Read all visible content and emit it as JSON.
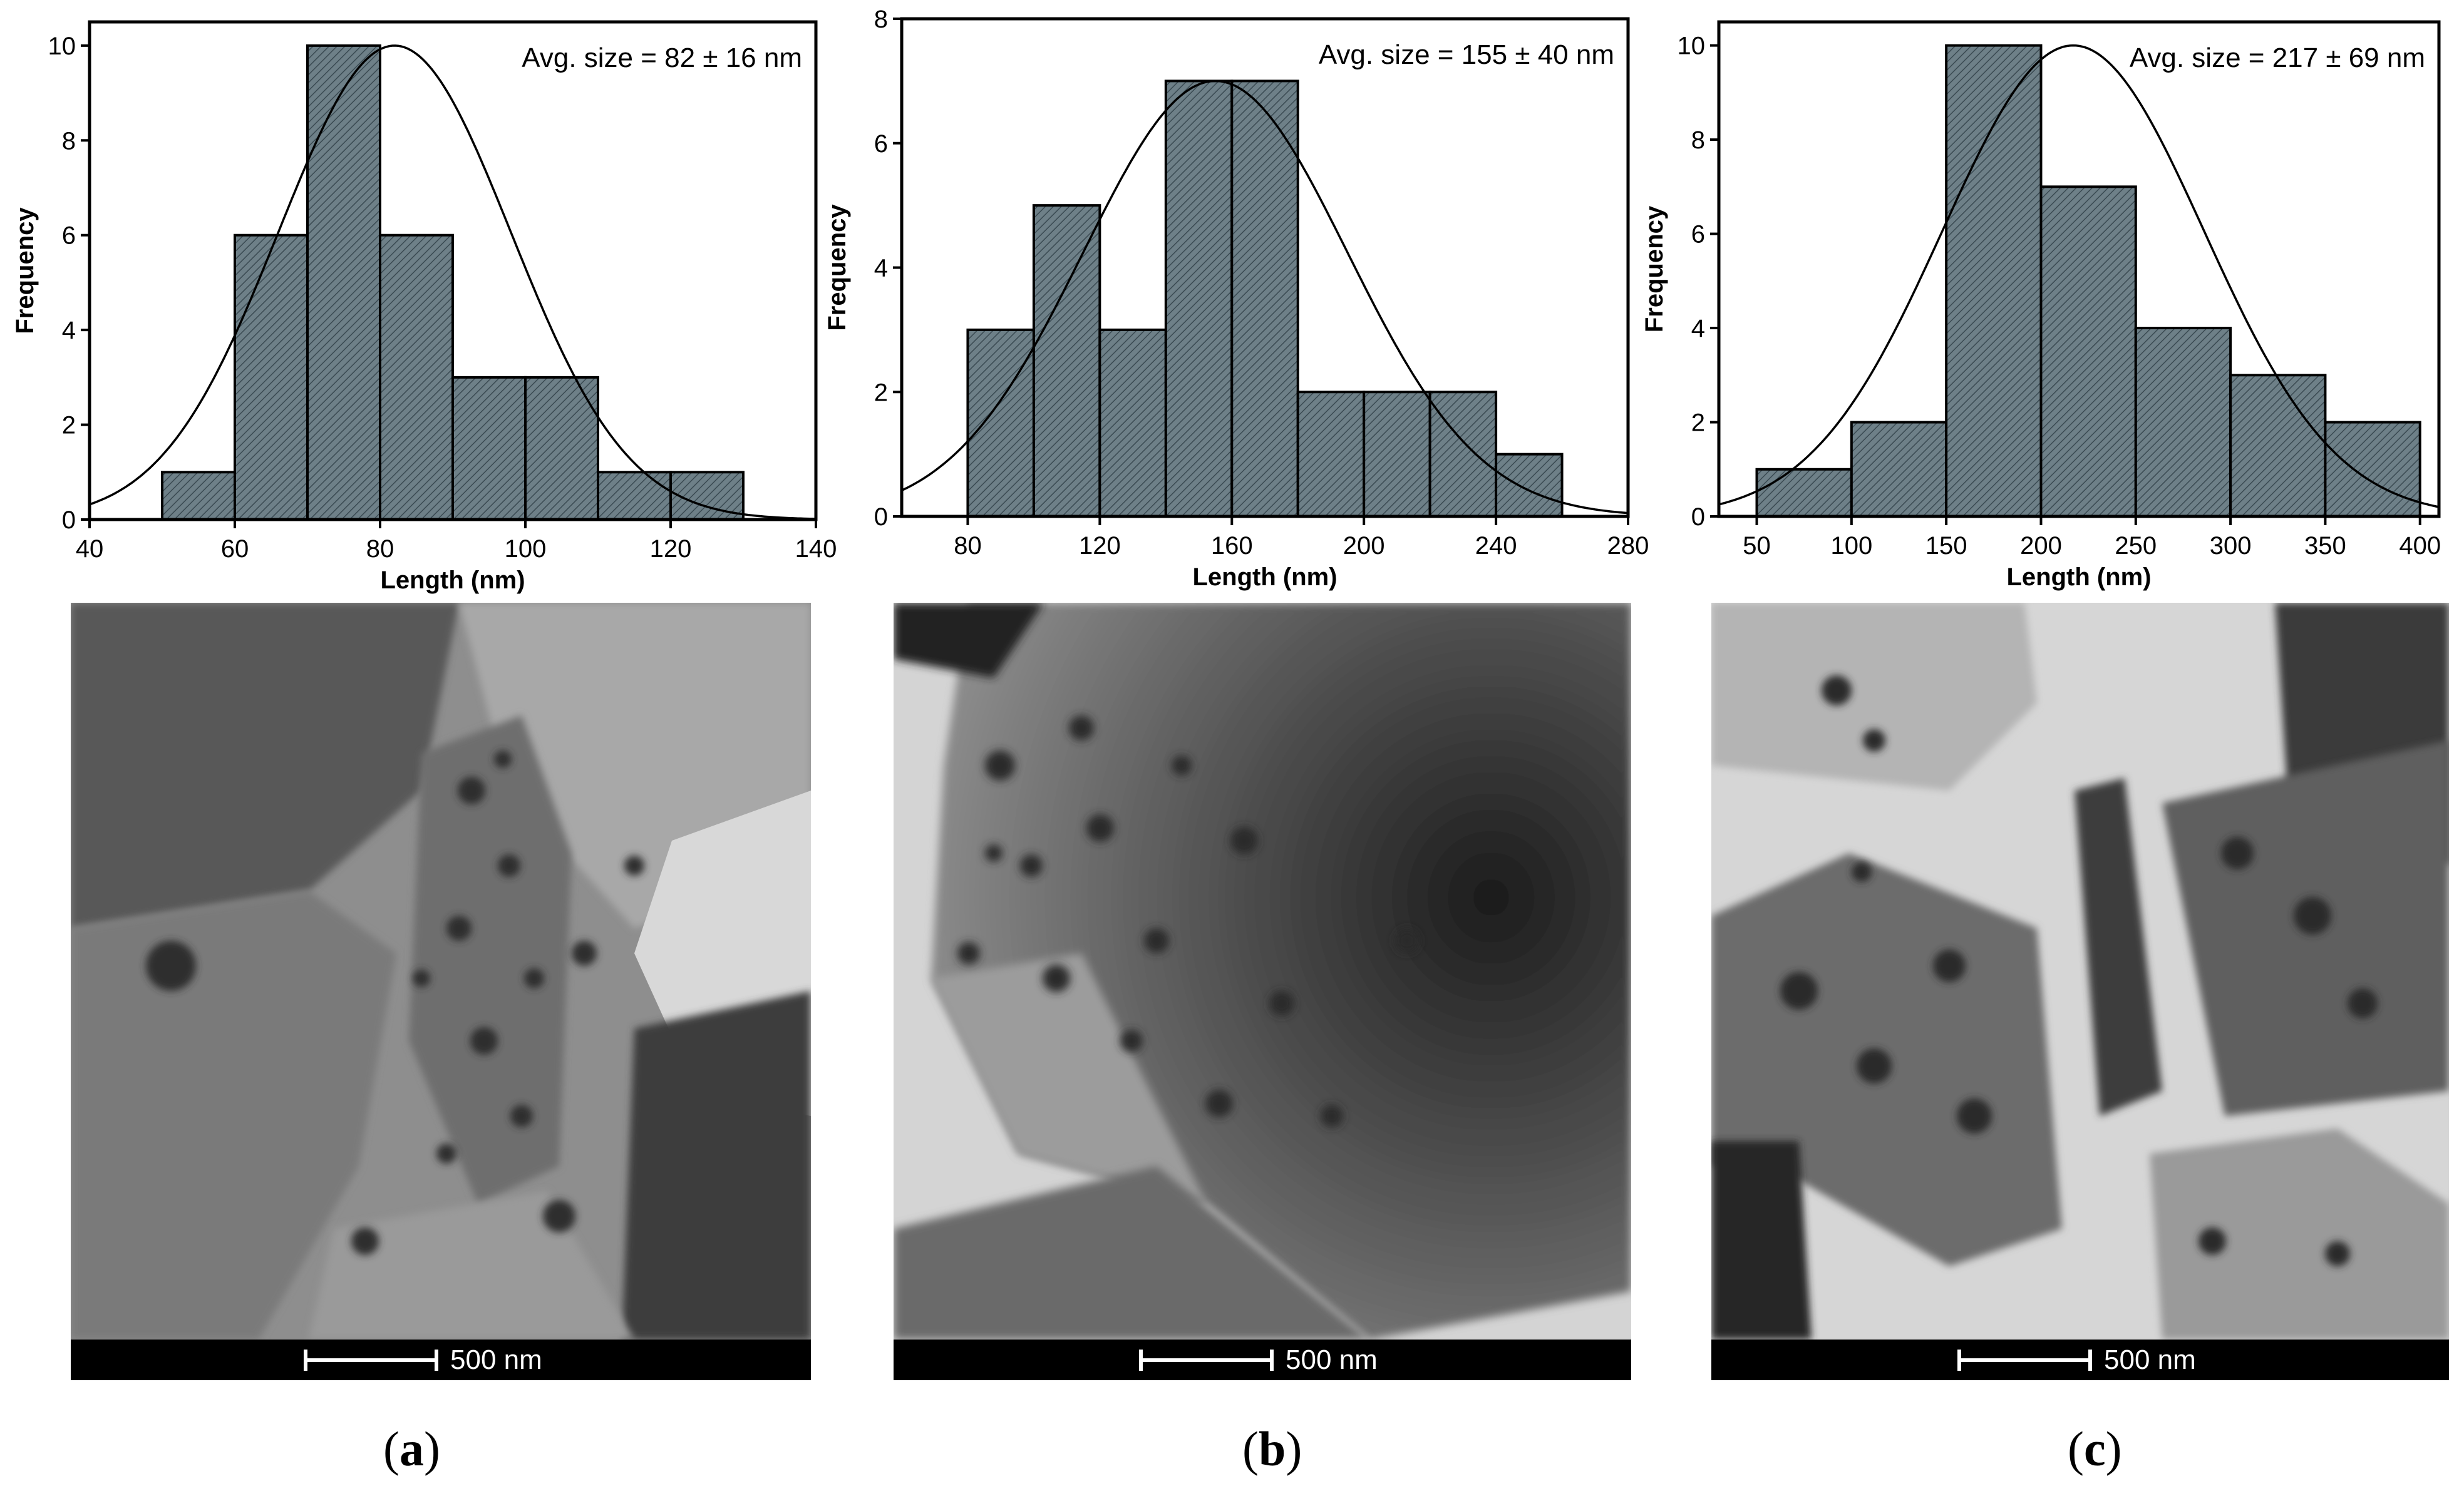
{
  "chart_data": [
    {
      "type": "bar",
      "subtype": "histogram-with-normal-fit",
      "xlabel": "Length (nm)",
      "ylabel": "Frequency",
      "xlim": [
        40,
        140
      ],
      "ylim": [
        0,
        10.5
      ],
      "xticks": [
        40,
        60,
        80,
        100,
        120,
        140
      ],
      "yticks": [
        0,
        2,
        4,
        6,
        8,
        10
      ],
      "bin_edges": [
        50,
        60,
        70,
        80,
        90,
        100,
        110,
        120,
        130
      ],
      "values": [
        1,
        6,
        10,
        6,
        3,
        3,
        1,
        1
      ],
      "fit": {
        "type": "normal",
        "mean": 82,
        "sd": 16,
        "peak": 10
      },
      "annotation": "Avg. size = 82 ± 16 nm",
      "grid": false
    },
    {
      "type": "bar",
      "subtype": "histogram-with-normal-fit",
      "xlabel": "Length (nm)",
      "ylabel": "Frequency",
      "xlim": [
        60,
        280
      ],
      "ylim": [
        0,
        8
      ],
      "xticks": [
        80,
        120,
        160,
        200,
        240,
        280
      ],
      "yticks": [
        0,
        2,
        4,
        6,
        8
      ],
      "bin_edges": [
        80,
        100,
        120,
        140,
        160,
        180,
        200,
        220,
        240,
        260
      ],
      "values": [
        3,
        5,
        3,
        7,
        7,
        2,
        2,
        2,
        1
      ],
      "fit": {
        "type": "normal",
        "mean": 155,
        "sd": 40,
        "peak": 7
      },
      "annotation": "Avg. size = 155 ± 40 nm",
      "grid": false
    },
    {
      "type": "bar",
      "subtype": "histogram-with-normal-fit",
      "xlabel": "Length (nm)",
      "ylabel": "Frequency",
      "xlim": [
        30,
        410
      ],
      "ylim": [
        0,
        10.5
      ],
      "xticks": [
        50,
        100,
        150,
        200,
        250,
        300,
        350,
        400
      ],
      "yticks": [
        0,
        2,
        4,
        6,
        8,
        10
      ],
      "bin_edges": [
        50,
        100,
        150,
        200,
        250,
        300,
        350,
        400
      ],
      "values": [
        1,
        2,
        10,
        7,
        4,
        3,
        2
      ],
      "fit": {
        "type": "normal",
        "mean": 217,
        "sd": 69,
        "peak": 10
      },
      "annotation": "Avg. size = 217 ± 69 nm",
      "grid": false
    }
  ],
  "images": [
    {
      "scale_label": "500 nm",
      "panel_label": "a"
    },
    {
      "scale_label": "500 nm",
      "panel_label": "b"
    },
    {
      "scale_label": "500 nm",
      "panel_label": "c"
    }
  ],
  "colors": {
    "bar_fill": "#6e8088",
    "bar_hatch": "#3a4a52",
    "fit_line": "#000000"
  }
}
